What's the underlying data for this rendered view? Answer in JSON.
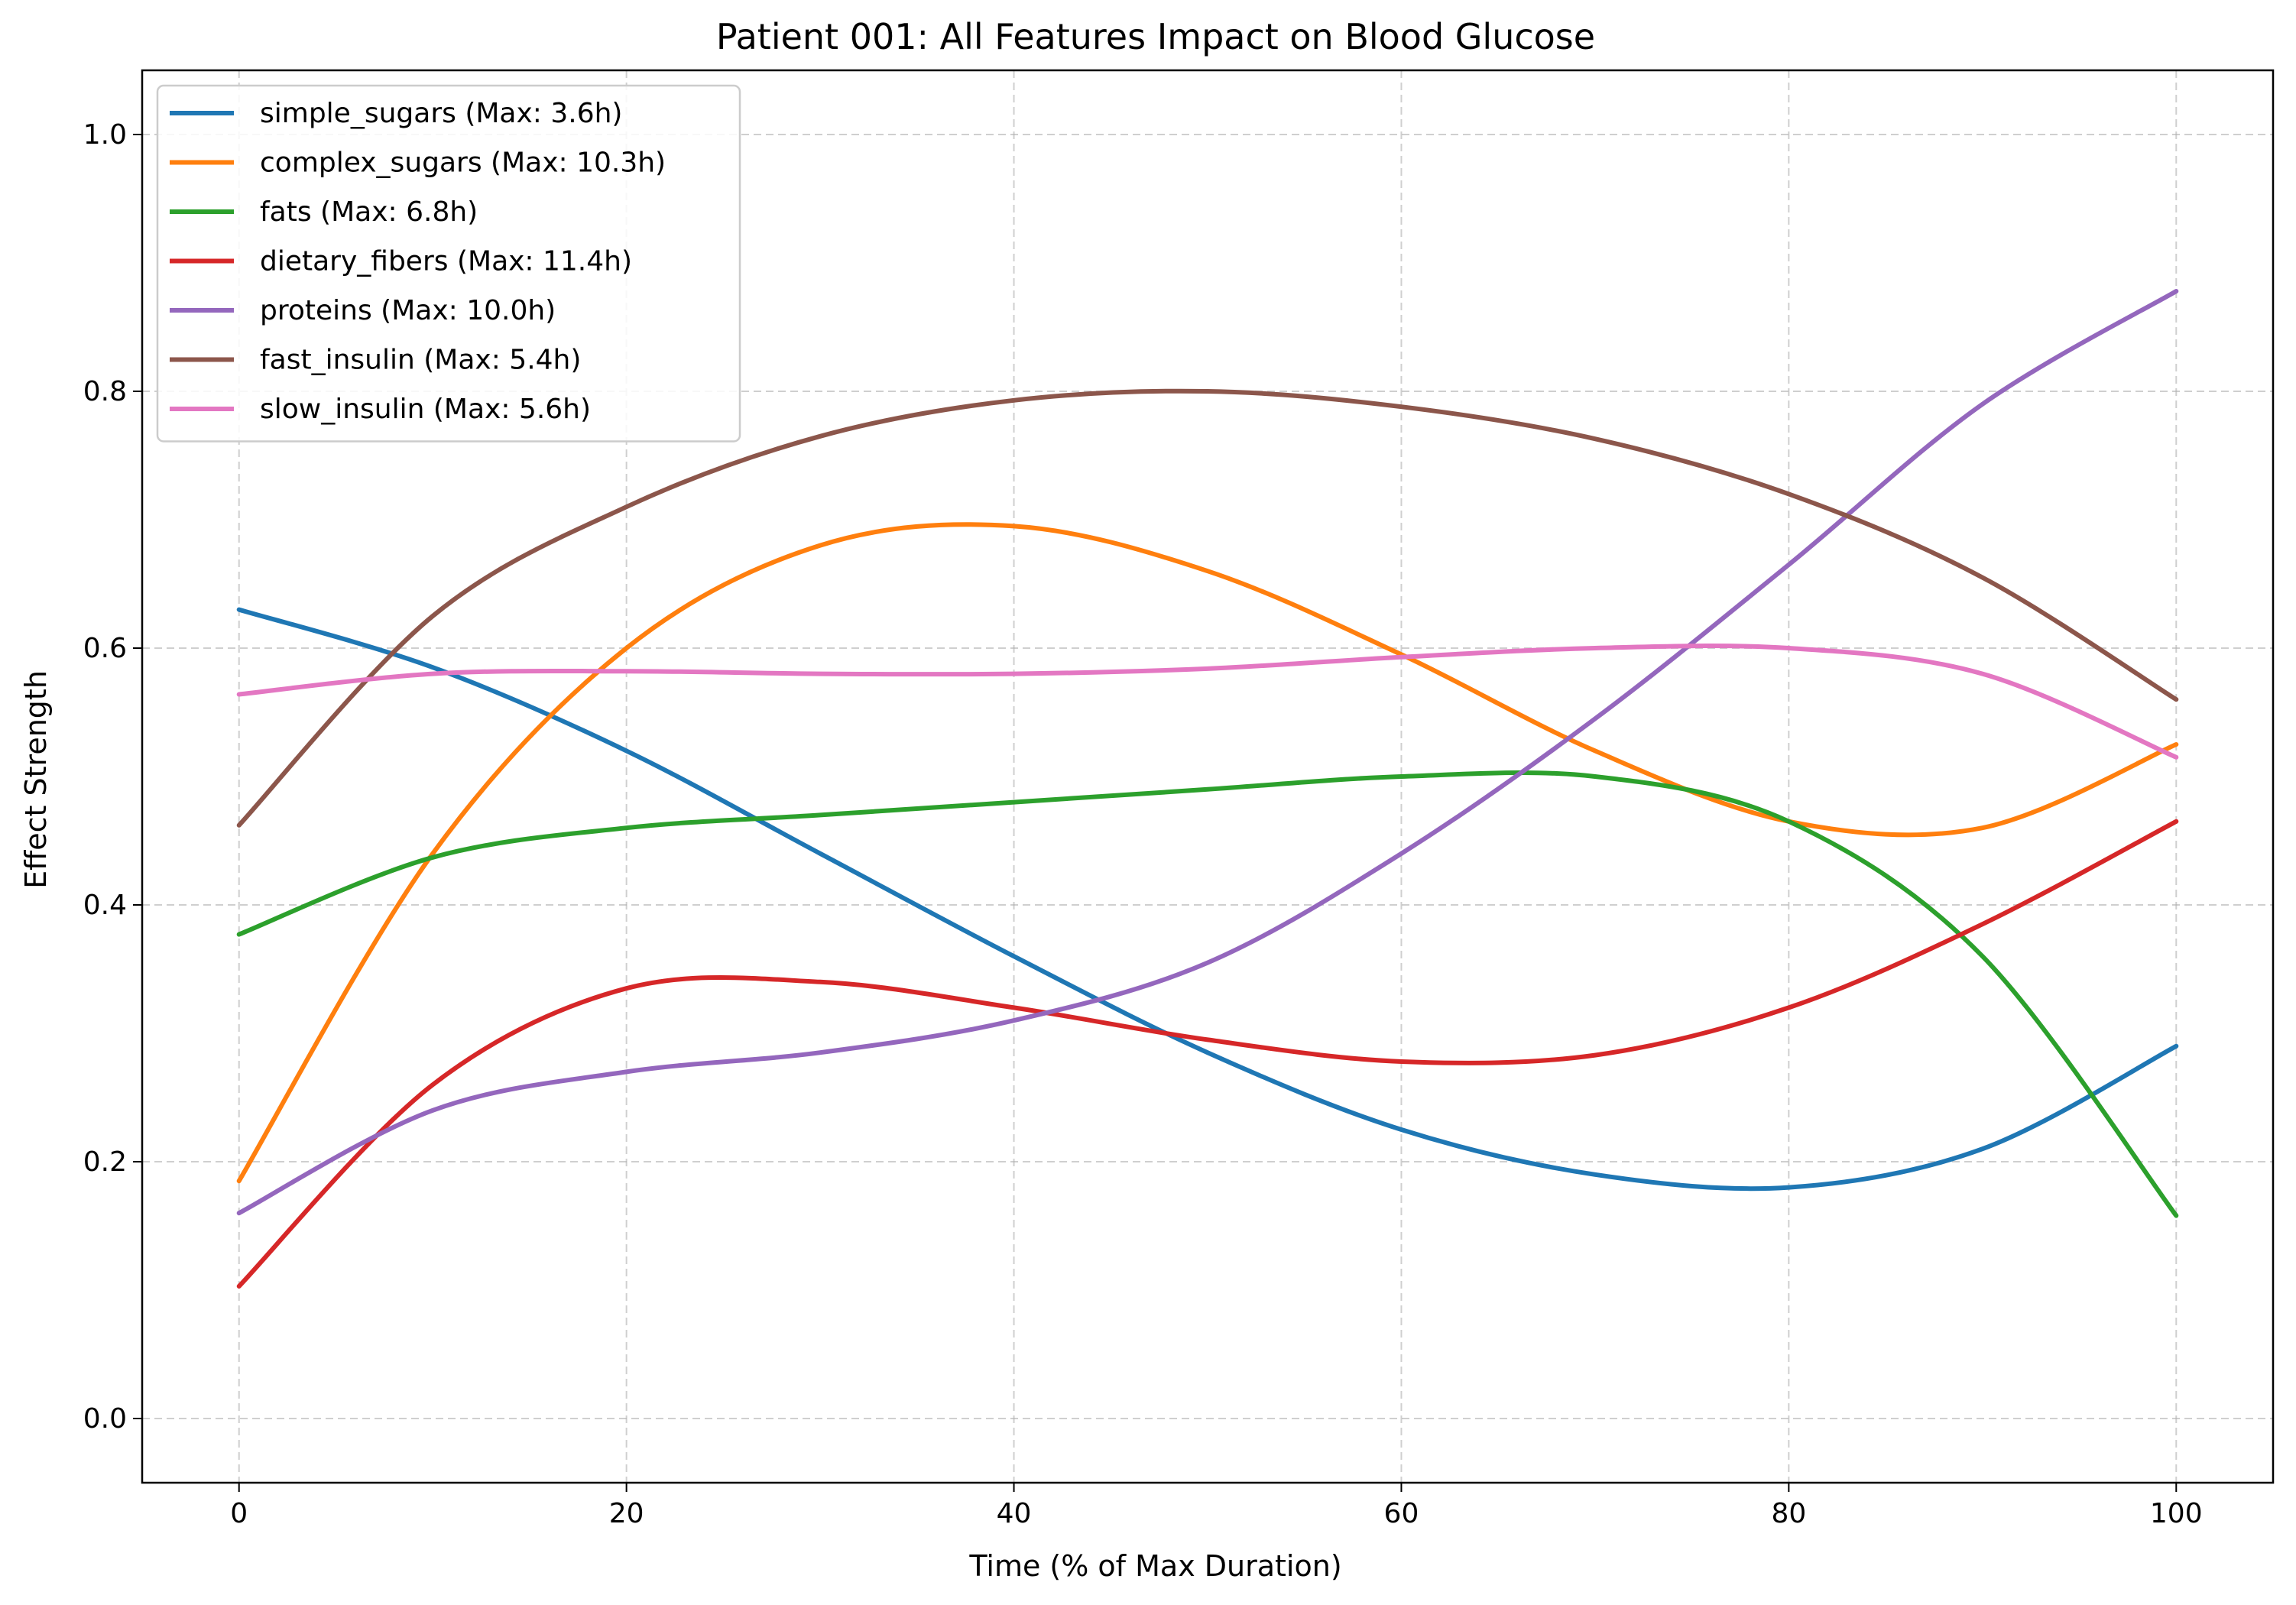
{
  "chart_data": {
    "type": "line",
    "title": "Patient 001: All Features Impact on Blood Glucose",
    "xlabel": "Time (% of Max Duration)",
    "ylabel": "Effect Strength",
    "xlim": [
      -5,
      105
    ],
    "ylim": [
      -0.05,
      1.05
    ],
    "xticks": [
      0,
      20,
      40,
      60,
      80,
      100
    ],
    "xtick_labels": [
      "0",
      "20",
      "40",
      "60",
      "80",
      "100"
    ],
    "yticks": [
      0.0,
      0.2,
      0.4,
      0.6,
      0.8,
      1.0
    ],
    "ytick_labels": [
      "0.0",
      "0.2",
      "0.4",
      "0.6",
      "0.8",
      "1.0"
    ],
    "grid": true,
    "legend_position": "upper-left",
    "x": [
      0,
      10,
      20,
      30,
      40,
      50,
      60,
      70,
      80,
      90,
      100
    ],
    "series": [
      {
        "name": "simple_sugars (Max: 3.6h)",
        "color": "#1f77b4",
        "values": [
          0.63,
          0.585,
          0.52,
          0.44,
          0.36,
          0.285,
          0.225,
          0.19,
          0.18,
          0.21,
          0.29
        ]
      },
      {
        "name": "complex_sugars (Max: 10.3h)",
        "color": "#ff7f0e",
        "values": [
          0.185,
          0.44,
          0.6,
          0.68,
          0.695,
          0.66,
          0.595,
          0.52,
          0.465,
          0.46,
          0.525
        ]
      },
      {
        "name": "fats (Max: 6.8h)",
        "color": "#2ca02c",
        "values": [
          0.377,
          0.437,
          0.46,
          0.47,
          0.48,
          0.49,
          0.5,
          0.5,
          0.465,
          0.36,
          0.158
        ]
      },
      {
        "name": "dietary_fibers (Max: 11.4h)",
        "color": "#d62728",
        "values": [
          0.103,
          0.26,
          0.335,
          0.34,
          0.32,
          0.295,
          0.278,
          0.283,
          0.32,
          0.385,
          0.465
        ]
      },
      {
        "name": "proteins (Max: 10.0h)",
        "color": "#9467bd",
        "values": [
          0.16,
          0.24,
          0.27,
          0.285,
          0.31,
          0.355,
          0.44,
          0.545,
          0.665,
          0.79,
          0.878
        ]
      },
      {
        "name": "fast_insulin (Max: 5.4h)",
        "color": "#8c564b",
        "values": [
          0.462,
          0.625,
          0.71,
          0.765,
          0.793,
          0.8,
          0.788,
          0.763,
          0.72,
          0.655,
          0.56
        ]
      },
      {
        "name": "slow_insulin (Max: 5.6h)",
        "color": "#e377c2",
        "values": [
          0.564,
          0.58,
          0.582,
          0.58,
          0.58,
          0.584,
          0.593,
          0.6,
          0.6,
          0.58,
          0.515
        ]
      }
    ]
  }
}
